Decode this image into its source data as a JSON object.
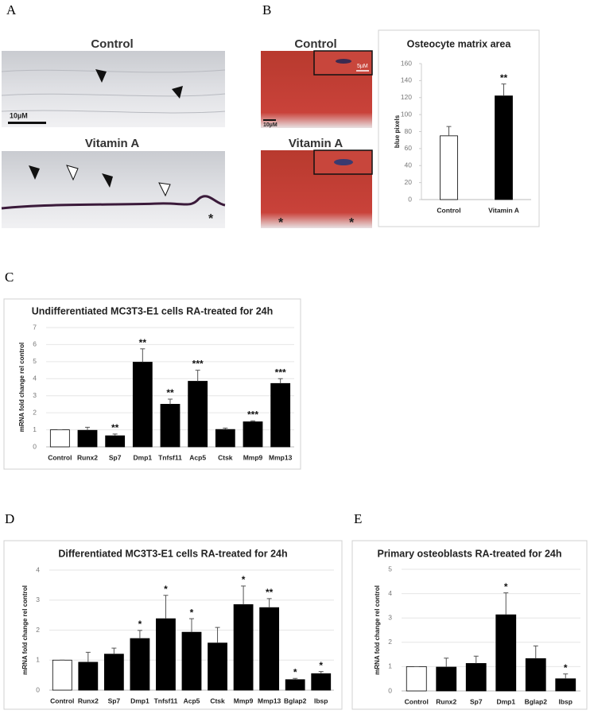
{
  "panel_labels": [
    "A",
    "B",
    "C",
    "D",
    "E"
  ],
  "panel_a": {
    "top_label": "Control",
    "scale": "10µM",
    "bottom_label": "Vitamin A",
    "marker": "*"
  },
  "panel_b": {
    "top_label": "Control",
    "inset_scale": "5µM",
    "scale": "10µM",
    "bottom_label": "Vitamin A",
    "markers": [
      "*",
      "*"
    ]
  },
  "chart_data": [
    {
      "type": "bar",
      "title": "Osteocyte matrix area",
      "ylabel": "blue pixels",
      "categories": [
        "Control",
        "Vitamin A"
      ],
      "values": [
        75,
        122
      ],
      "errors": [
        11,
        14
      ],
      "annotations": [
        null,
        "**"
      ],
      "colors": [
        "#ffffff",
        "#000000"
      ],
      "ylim": [
        0,
        160
      ],
      "yticks": [
        0,
        20,
        40,
        60,
        80,
        100,
        120,
        140,
        160
      ],
      "grid": false
    },
    {
      "type": "bar",
      "title": "Undifferentiated MC3T3-E1 cells RA-treated for 24h",
      "ylabel": "mRNA fold change rel control",
      "categories": [
        "Control",
        "Runx2",
        "Sp7",
        "Dmp1",
        "Tnfsf11",
        "Acp5",
        "Ctsk",
        "Mmp9",
        "Mmp13"
      ],
      "values": [
        1,
        0.97,
        0.65,
        4.97,
        2.5,
        3.85,
        1.02,
        1.47,
        3.72
      ],
      "errors": [
        0,
        0.18,
        0.1,
        0.78,
        0.3,
        0.65,
        0.08,
        0.06,
        0.28
      ],
      "annotations": [
        null,
        null,
        "**",
        "**",
        "**",
        "***",
        null,
        "***",
        "***"
      ],
      "colors": [
        "#ffffff",
        "#000000",
        "#000000",
        "#000000",
        "#000000",
        "#000000",
        "#000000",
        "#000000",
        "#000000"
      ],
      "ylim": [
        0,
        7
      ],
      "yticks": [
        0,
        1,
        2,
        3,
        4,
        5,
        6,
        7
      ],
      "grid": true
    },
    {
      "type": "bar",
      "title": "Differentiated MC3T3-E1 cells RA-treated for 24h",
      "ylabel": "mRNA fold change rel control",
      "categories": [
        "Control",
        "Runx2",
        "Sp7",
        "Dmp1",
        "Tnfsf11",
        "Acp5",
        "Ctsk",
        "Mmp9",
        "Mmp13",
        "Bglap2",
        "Ibsp"
      ],
      "values": [
        1,
        0.93,
        1.2,
        1.72,
        2.38,
        1.93,
        1.57,
        2.85,
        2.75,
        0.35,
        0.55
      ],
      "errors": [
        0,
        0.33,
        0.2,
        0.27,
        0.78,
        0.45,
        0.52,
        0.62,
        0.3,
        0.04,
        0.07
      ],
      "annotations": [
        null,
        null,
        null,
        "*",
        "*",
        "*",
        null,
        "*",
        "**",
        "*",
        "*"
      ],
      "colors": [
        "#ffffff",
        "#000000",
        "#000000",
        "#000000",
        "#000000",
        "#000000",
        "#000000",
        "#000000",
        "#000000",
        "#000000",
        "#000000"
      ],
      "ylim": [
        0,
        4
      ],
      "yticks": [
        0,
        1,
        2,
        3,
        4
      ],
      "grid": true
    },
    {
      "type": "bar",
      "title": "Primary osteoblasts RA-treated for 24h",
      "ylabel": "mRNA fold change rel control",
      "categories": [
        "Control",
        "Runx2",
        "Sp7",
        "Dmp1",
        "Bglap2",
        "Ibsp"
      ],
      "values": [
        1,
        0.98,
        1.13,
        3.13,
        1.33,
        0.5
      ],
      "errors": [
        0,
        0.37,
        0.3,
        0.9,
        0.52,
        0.2
      ],
      "annotations": [
        null,
        null,
        null,
        "*",
        null,
        "*"
      ],
      "colors": [
        "#ffffff",
        "#000000",
        "#000000",
        "#000000",
        "#000000",
        "#000000"
      ],
      "ylim": [
        0,
        5
      ],
      "yticks": [
        0,
        1,
        2,
        3,
        4,
        5
      ],
      "grid": true
    }
  ]
}
